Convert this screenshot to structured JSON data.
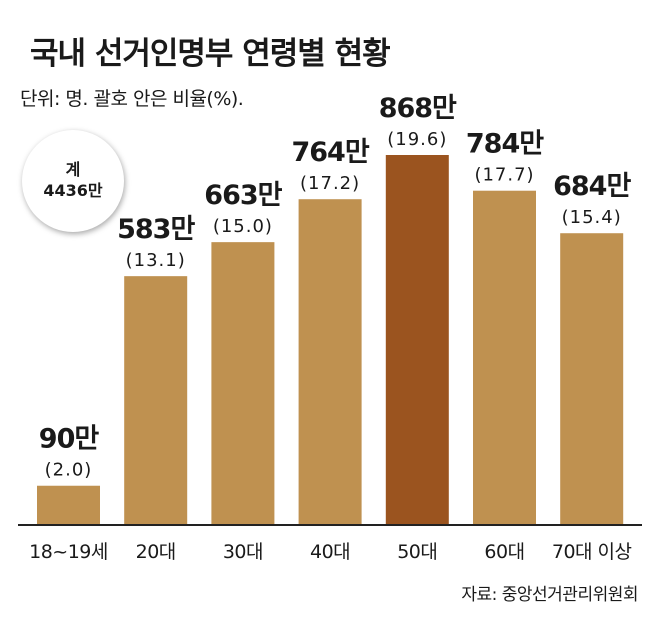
{
  "chart_data": {
    "type": "bar",
    "title": "국내 선거인명부 연령별 현황",
    "unit_note": "단위: 명. 괄호 안은 비율(%).",
    "total": {
      "label": "계",
      "value": "4436만"
    },
    "categories": [
      "18~19세",
      "20대",
      "30대",
      "40대",
      "50대",
      "60대",
      "70대 이상"
    ],
    "values": [
      90,
      583,
      663,
      764,
      868,
      784,
      684
    ],
    "value_labels": [
      "90만",
      "583만",
      "663만",
      "764만",
      "868만",
      "784만",
      "684만"
    ],
    "percent_labels": [
      "(2.0)",
      "(13.1)",
      "(15.0)",
      "(17.2)",
      "(19.6)",
      "(17.7)",
      "(15.4)"
    ],
    "highlight_index": 4,
    "ylim": [
      0,
      868
    ],
    "grid": false,
    "source": "자료: 중앙선거관리위원회"
  },
  "colors": {
    "bar": "#BF9150",
    "bar_highlight": "#9B541F",
    "baseline": "#222222"
  }
}
